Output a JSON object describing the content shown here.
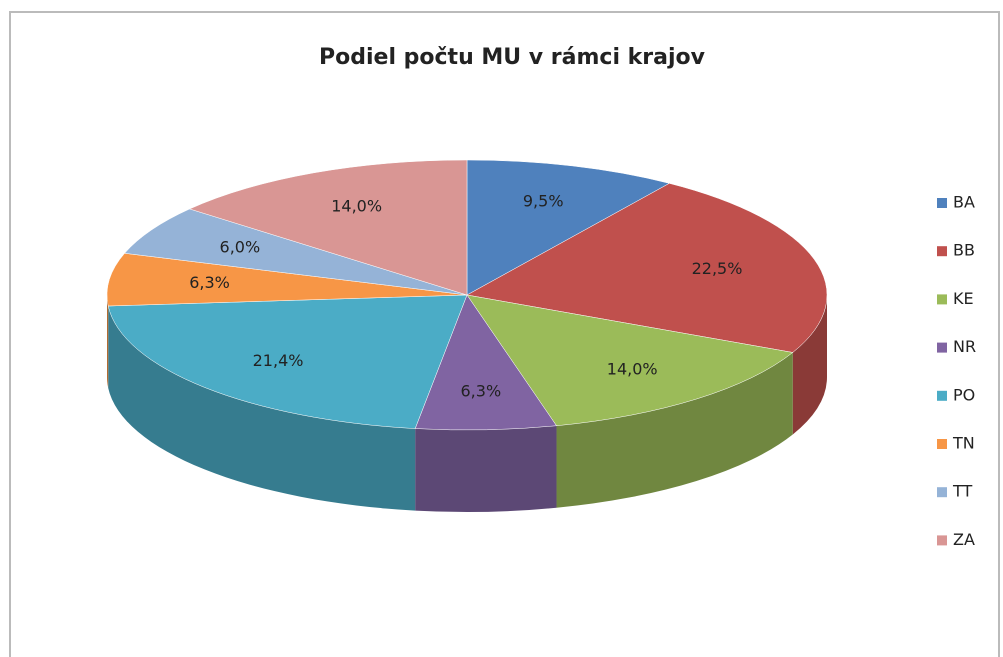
{
  "chart_data": {
    "type": "pie",
    "title": "Podiel počtu MU v rámci krajov",
    "categories": [
      "BA",
      "BB",
      "KE",
      "NR",
      "PO",
      "TN",
      "TT",
      "ZA"
    ],
    "values": [
      9.5,
      22.5,
      14.0,
      6.3,
      21.4,
      6.3,
      6.0,
      14.0
    ],
    "value_labels": [
      "9,5%",
      "22,5%",
      "14,0%",
      "6,3%",
      "21,4%",
      "6,3%",
      "6,0%",
      "14,0%"
    ],
    "colors": [
      "#4f81bd",
      "#c0504d",
      "#9bbb59",
      "#8064a2",
      "#4bacc6",
      "#f79646",
      "#95b3d7",
      "#d99694"
    ],
    "legend": "right"
  }
}
